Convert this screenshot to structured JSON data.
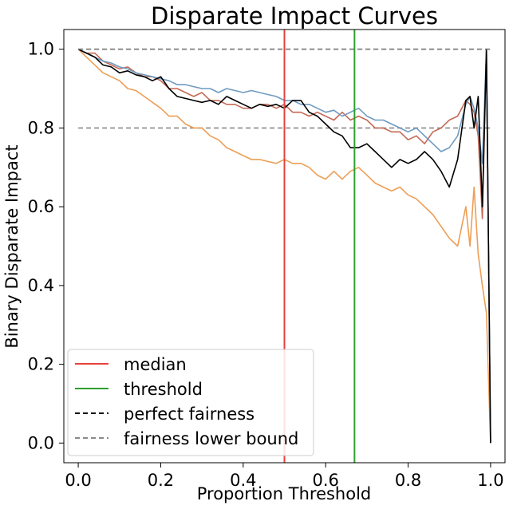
{
  "chart_data": {
    "type": "line",
    "title": "Disparate Impact Curves",
    "xlabel": "Proportion Threshold",
    "ylabel": "Binary Disparate Impact",
    "xlim": [
      -0.035,
      1.035
    ],
    "ylim": [
      -0.05,
      1.05
    ],
    "xticks": [
      "0.0",
      "0.2",
      "0.4",
      "0.6",
      "0.8",
      "1.0"
    ],
    "yticks": [
      "0.0",
      "0.2",
      "0.4",
      "0.6",
      "0.8",
      "1.0"
    ],
    "grid": false,
    "legend_position": "lower-left",
    "legend": [
      {
        "label": "median",
        "color": "#e8403c",
        "style": "solid"
      },
      {
        "label": "threshold",
        "color": "#2ca02c",
        "style": "solid"
      },
      {
        "label": "perfect fairness",
        "color": "#000000",
        "style": "dashed"
      },
      {
        "label": "fairness lower bound",
        "color": "#888888",
        "style": "dashed"
      }
    ],
    "reference_lines": {
      "median_x": 0.5,
      "threshold_x": 0.67,
      "perfect_fairness_y": 1.0,
      "lower_bound_y": 0.8,
      "horizontal_x_range": [
        0.0,
        1.0
      ]
    },
    "series": [
      {
        "color": "#ed9e55",
        "x": [
          0.0,
          0.02,
          0.04,
          0.06,
          0.08,
          0.1,
          0.12,
          0.14,
          0.16,
          0.18,
          0.2,
          0.22,
          0.24,
          0.26,
          0.28,
          0.3,
          0.32,
          0.34,
          0.36,
          0.38,
          0.4,
          0.42,
          0.44,
          0.46,
          0.48,
          0.5,
          0.52,
          0.54,
          0.56,
          0.58,
          0.6,
          0.62,
          0.64,
          0.66,
          0.68,
          0.7,
          0.72,
          0.74,
          0.76,
          0.78,
          0.8,
          0.82,
          0.84,
          0.86,
          0.88,
          0.9,
          0.92,
          0.94,
          0.95,
          0.96,
          0.97,
          0.98,
          0.99,
          1.0
        ],
        "y": [
          1.0,
          0.98,
          0.96,
          0.94,
          0.93,
          0.92,
          0.9,
          0.895,
          0.88,
          0.865,
          0.85,
          0.83,
          0.83,
          0.81,
          0.8,
          0.8,
          0.78,
          0.77,
          0.75,
          0.74,
          0.73,
          0.72,
          0.72,
          0.715,
          0.71,
          0.72,
          0.71,
          0.71,
          0.7,
          0.68,
          0.67,
          0.69,
          0.67,
          0.69,
          0.7,
          0.68,
          0.66,
          0.65,
          0.64,
          0.65,
          0.63,
          0.62,
          0.6,
          0.58,
          0.55,
          0.52,
          0.5,
          0.6,
          0.5,
          0.65,
          0.48,
          0.4,
          0.33,
          0.0
        ]
      },
      {
        "color": "#c46a55",
        "x": [
          0.0,
          0.02,
          0.04,
          0.06,
          0.08,
          0.1,
          0.12,
          0.14,
          0.16,
          0.18,
          0.2,
          0.22,
          0.24,
          0.26,
          0.28,
          0.3,
          0.32,
          0.34,
          0.36,
          0.38,
          0.4,
          0.42,
          0.44,
          0.46,
          0.48,
          0.5,
          0.52,
          0.54,
          0.56,
          0.58,
          0.6,
          0.62,
          0.64,
          0.66,
          0.68,
          0.7,
          0.72,
          0.74,
          0.76,
          0.78,
          0.8,
          0.82,
          0.84,
          0.86,
          0.88,
          0.9,
          0.92,
          0.94,
          0.95,
          0.96,
          0.97,
          0.98,
          0.99,
          1.0
        ],
        "y": [
          1.0,
          0.99,
          0.99,
          0.97,
          0.96,
          0.95,
          0.955,
          0.94,
          0.93,
          0.93,
          0.92,
          0.9,
          0.9,
          0.89,
          0.88,
          0.89,
          0.87,
          0.87,
          0.86,
          0.86,
          0.85,
          0.85,
          0.86,
          0.86,
          0.85,
          0.86,
          0.84,
          0.84,
          0.83,
          0.84,
          0.83,
          0.82,
          0.84,
          0.82,
          0.83,
          0.82,
          0.8,
          0.8,
          0.79,
          0.79,
          0.77,
          0.78,
          0.76,
          0.79,
          0.8,
          0.82,
          0.83,
          0.87,
          0.86,
          0.84,
          0.78,
          0.57,
          1.0,
          0.0
        ]
      },
      {
        "color": "#6f9bc0",
        "x": [
          0.0,
          0.02,
          0.04,
          0.06,
          0.08,
          0.1,
          0.12,
          0.14,
          0.16,
          0.18,
          0.2,
          0.22,
          0.24,
          0.26,
          0.28,
          0.3,
          0.32,
          0.34,
          0.36,
          0.38,
          0.4,
          0.42,
          0.44,
          0.46,
          0.48,
          0.5,
          0.52,
          0.54,
          0.56,
          0.58,
          0.6,
          0.62,
          0.64,
          0.66,
          0.68,
          0.7,
          0.72,
          0.74,
          0.76,
          0.78,
          0.8,
          0.82,
          0.84,
          0.86,
          0.88,
          0.9,
          0.92,
          0.94,
          0.95,
          0.96,
          0.97,
          0.98,
          0.99,
          1.0
        ],
        "y": [
          1.0,
          0.99,
          0.98,
          0.97,
          0.965,
          0.955,
          0.95,
          0.94,
          0.935,
          0.93,
          0.925,
          0.92,
          0.91,
          0.91,
          0.905,
          0.9,
          0.9,
          0.89,
          0.9,
          0.895,
          0.89,
          0.895,
          0.89,
          0.885,
          0.88,
          0.87,
          0.87,
          0.86,
          0.86,
          0.85,
          0.84,
          0.845,
          0.83,
          0.84,
          0.85,
          0.83,
          0.82,
          0.82,
          0.81,
          0.8,
          0.79,
          0.8,
          0.78,
          0.76,
          0.74,
          0.75,
          0.78,
          0.86,
          0.88,
          0.85,
          0.8,
          0.71,
          1.0,
          0.0
        ]
      },
      {
        "color": "#000000",
        "x": [
          0.0,
          0.02,
          0.04,
          0.06,
          0.08,
          0.1,
          0.12,
          0.14,
          0.16,
          0.18,
          0.2,
          0.22,
          0.24,
          0.26,
          0.28,
          0.3,
          0.32,
          0.34,
          0.36,
          0.38,
          0.4,
          0.42,
          0.44,
          0.46,
          0.48,
          0.5,
          0.52,
          0.54,
          0.56,
          0.58,
          0.6,
          0.62,
          0.64,
          0.66,
          0.68,
          0.7,
          0.72,
          0.74,
          0.76,
          0.78,
          0.8,
          0.82,
          0.84,
          0.86,
          0.88,
          0.9,
          0.92,
          0.94,
          0.95,
          0.96,
          0.97,
          0.98,
          0.99,
          1.0
        ],
        "y": [
          1.0,
          0.99,
          0.98,
          0.96,
          0.955,
          0.94,
          0.945,
          0.935,
          0.93,
          0.92,
          0.93,
          0.9,
          0.88,
          0.875,
          0.87,
          0.865,
          0.87,
          0.86,
          0.88,
          0.87,
          0.86,
          0.85,
          0.86,
          0.855,
          0.86,
          0.85,
          0.87,
          0.87,
          0.84,
          0.83,
          0.81,
          0.79,
          0.78,
          0.75,
          0.75,
          0.76,
          0.74,
          0.72,
          0.7,
          0.72,
          0.71,
          0.72,
          0.74,
          0.72,
          0.69,
          0.65,
          0.72,
          0.87,
          0.88,
          0.8,
          0.88,
          0.6,
          1.0,
          0.0
        ]
      }
    ]
  }
}
